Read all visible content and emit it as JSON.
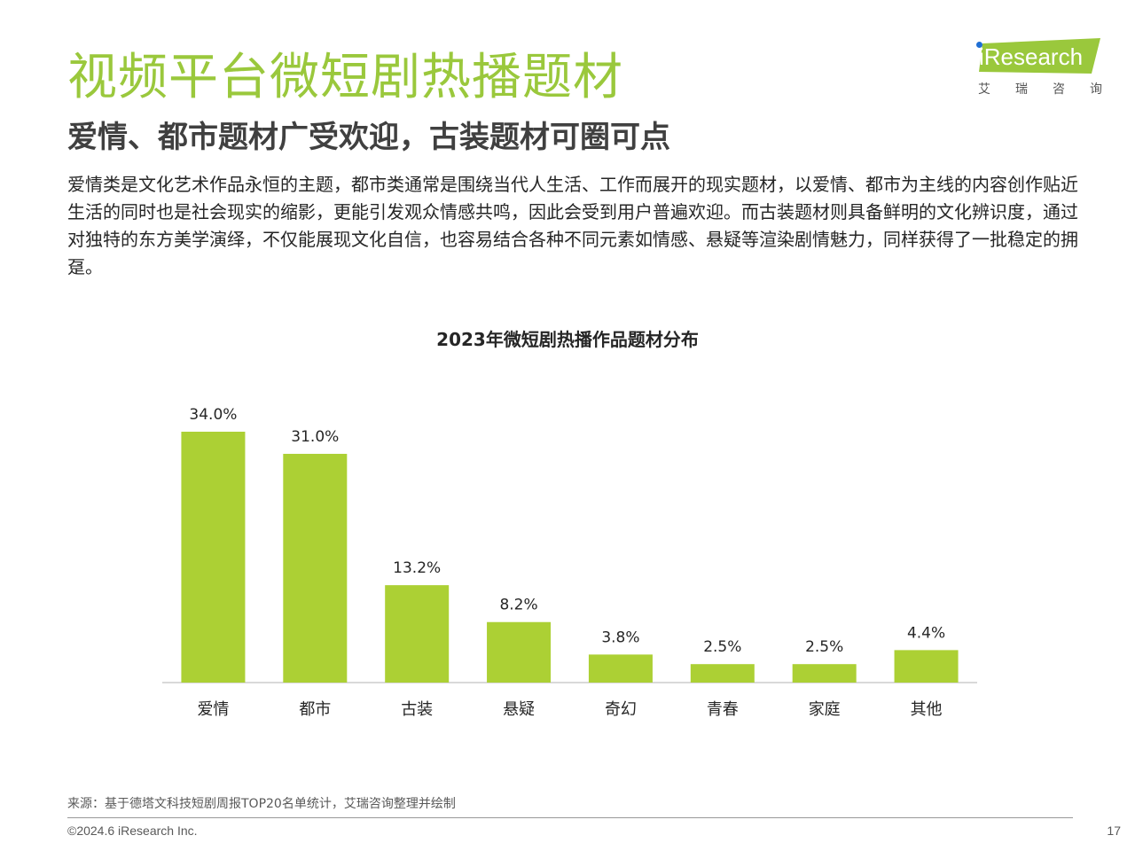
{
  "header": {
    "title": "视频平台微短剧热播题材",
    "subtitle": "爱情、都市题材广受欢迎，古装题材可圈可点",
    "body": "爱情类是文化艺术作品永恒的主题，都市类通常是围绕当代人生活、工作而展开的现实题材，以爱情、都市为主线的内容创作贴近生活的同时也是社会现实的缩影，更能引发观众情感共鸣，因此会受到用户普遍欢迎。而古装题材则具备鲜明的文化辨识度，通过对独特的东方美学演绎，不仅能展现文化自信，也容易结合各种不同元素如情感、悬疑等渲染剧情魅力，同样获得了一批稳定的拥趸。"
  },
  "logo": {
    "wordmark": "iResearch",
    "cn_chars": [
      "艾",
      "瑞",
      "咨",
      "询"
    ],
    "accent": "#9ac83c",
    "dot_color": "#1f6fd4"
  },
  "chart_data": {
    "type": "bar",
    "title": "2023年微短剧热播作品题材分布",
    "categories": [
      "爱情",
      "都市",
      "古装",
      "悬疑",
      "奇幻",
      "青春",
      "家庭",
      "其他"
    ],
    "values": [
      34.0,
      31.0,
      13.2,
      8.2,
      3.8,
      2.5,
      2.5,
      4.4
    ],
    "value_labels": [
      "34.0%",
      "31.0%",
      "13.2%",
      "8.2%",
      "3.8%",
      "2.5%",
      "2.5%",
      "4.4%"
    ],
    "unit": "%",
    "ylim": [
      0,
      34.0
    ],
    "bar_color": "#acd034",
    "grid": false,
    "legend": "none"
  },
  "footer": {
    "source": "来源：基于德塔文科技短剧周报TOP20名单统计，艾瑞咨询整理并绘制",
    "copyright": "©2024.6 iResearch Inc.",
    "page_number": "17"
  }
}
